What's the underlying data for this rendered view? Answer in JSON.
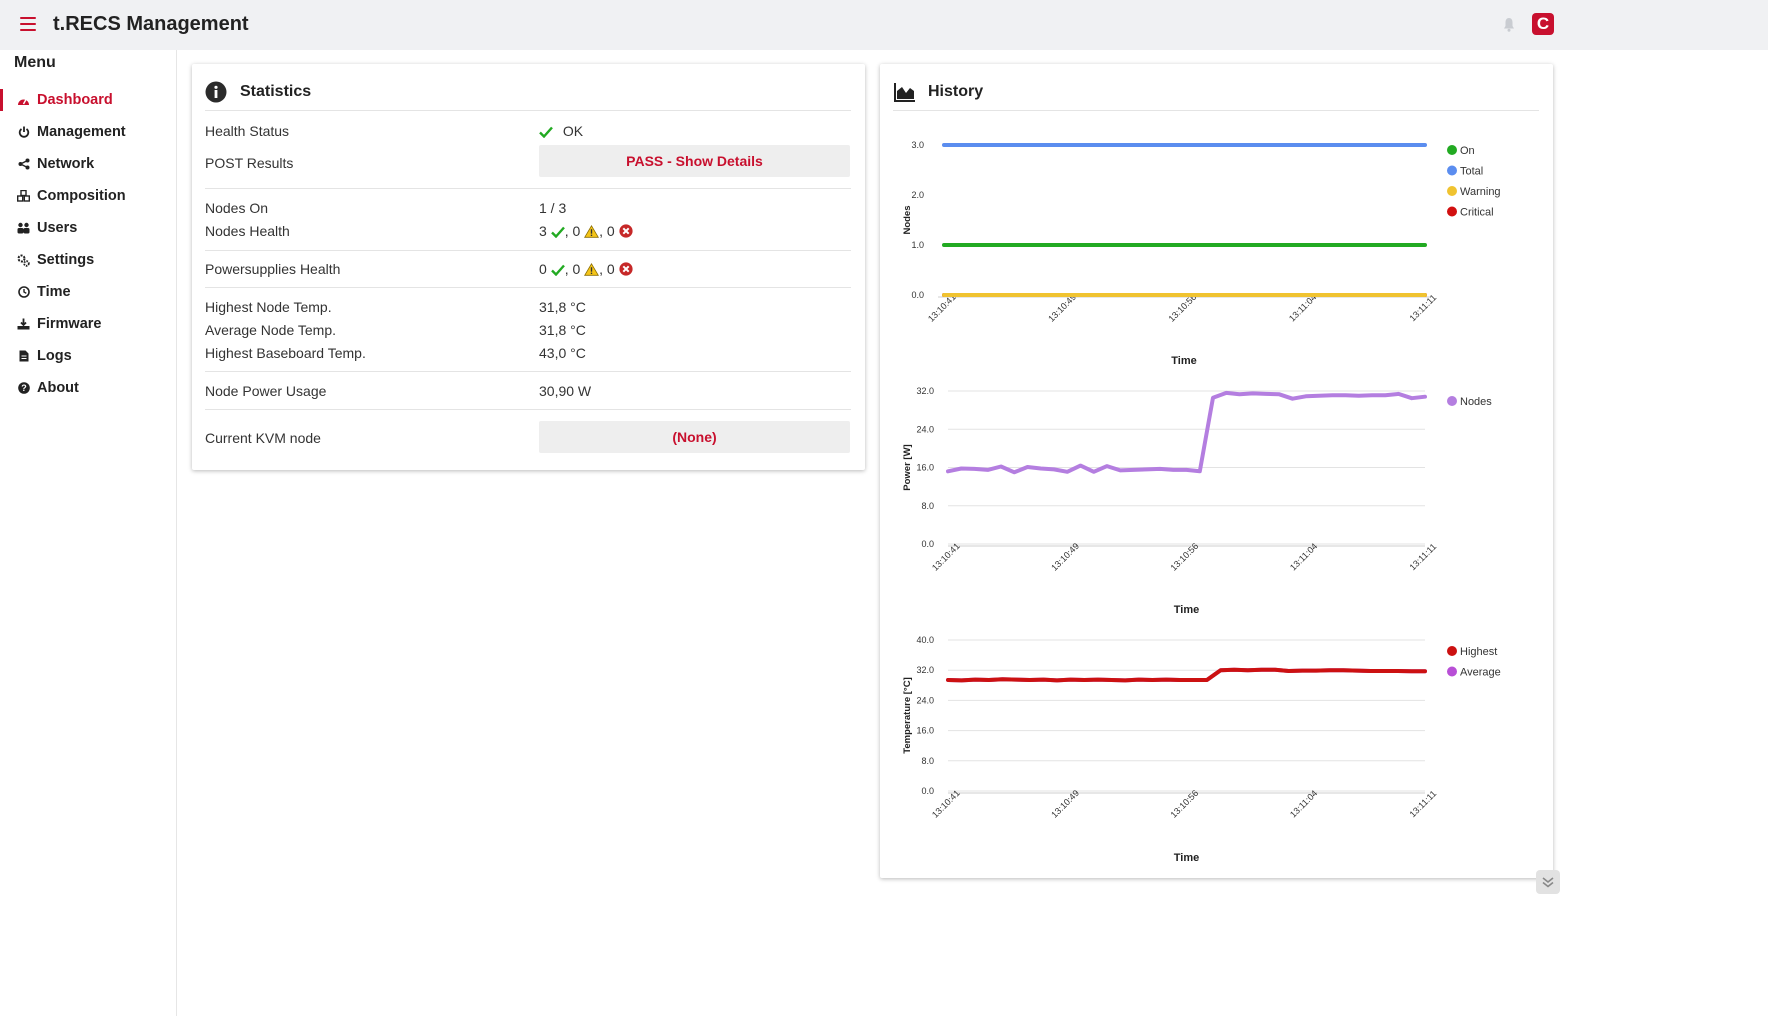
{
  "header": {
    "title": "t.RECS Management",
    "logo_letter": "C",
    "brand_color": "#c8102e"
  },
  "sidebar": {
    "title": "Menu",
    "items": [
      {
        "label": "Dashboard",
        "icon": "dashboard-gauge-icon",
        "active": true
      },
      {
        "label": "Management",
        "icon": "power-icon"
      },
      {
        "label": "Network",
        "icon": "share-icon"
      },
      {
        "label": "Composition",
        "icon": "cubes-icon"
      },
      {
        "label": "Users",
        "icon": "users-icon"
      },
      {
        "label": "Settings",
        "icon": "cogs-icon"
      },
      {
        "label": "Time",
        "icon": "clock-icon"
      },
      {
        "label": "Firmware",
        "icon": "download-tray-icon"
      },
      {
        "label": "Logs",
        "icon": "file-icon"
      },
      {
        "label": "About",
        "icon": "question-circle-icon"
      }
    ]
  },
  "statistics": {
    "title": "Statistics",
    "health_status": {
      "label": "Health Status",
      "value": "OK"
    },
    "post_results": {
      "label": "POST Results",
      "button": "PASS - Show Details"
    },
    "nodes_on": {
      "label": "Nodes On",
      "value": "1 / 3"
    },
    "nodes_health": {
      "label": "Nodes Health",
      "ok": "3",
      "warning": ", 0",
      "critical": ", 0"
    },
    "psu_health": {
      "label": "Powersupplies Health",
      "ok": "0",
      "warning": ", 0",
      "critical": ", 0"
    },
    "highest_node_temp": {
      "label": "Highest Node Temp.",
      "value": "31,8 °C"
    },
    "average_node_temp": {
      "label": "Average Node Temp.",
      "value": "31,8 °C"
    },
    "highest_baseboard_temp": {
      "label": "Highest Baseboard Temp.",
      "value": "43,0 °C"
    },
    "node_power": {
      "label": "Node Power Usage",
      "value": "30,90 W"
    },
    "kvm": {
      "label": "Current KVM node",
      "button": "(None)"
    }
  },
  "history": {
    "title": "History"
  },
  "chart_data": [
    {
      "type": "line",
      "ylabel": "Nodes",
      "xlabel": "Time",
      "x_ticks": [
        "13:10:41",
        "13:10:49",
        "13:10:56",
        "13:11:04",
        "13:11:11"
      ],
      "y_ticks": [
        "0.0",
        "1.0",
        "2.0",
        "3.0"
      ],
      "ylim": [
        0,
        3
      ],
      "grid": false,
      "legend": "right",
      "series": [
        {
          "name": "On",
          "color": "#22aa22",
          "values": [
            1,
            1
          ]
        },
        {
          "name": "Total",
          "color": "#5b8def",
          "values": [
            3,
            3
          ]
        },
        {
          "name": "Warning",
          "color": "#f0c330",
          "values": [
            0,
            0
          ]
        },
        {
          "name": "Critical",
          "color": "#d21010",
          "values": [
            0,
            0
          ]
        }
      ]
    },
    {
      "type": "line",
      "ylabel": "Power [W]",
      "xlabel": "Time",
      "x_ticks": [
        "13:10:41",
        "13:10:49",
        "13:10:56",
        "13:11:04",
        "13:11:11"
      ],
      "y_ticks": [
        "0.0",
        "8.0",
        "16.0",
        "24.0",
        "32.0"
      ],
      "ylim": [
        0,
        32
      ],
      "grid": true,
      "legend": "right",
      "series": [
        {
          "name": "Nodes",
          "color": "#b47ee0",
          "values": [
            15.2,
            15.8,
            15.7,
            15.5,
            16.2,
            15.0,
            16.1,
            15.8,
            15.6,
            15.1,
            16.4,
            15.1,
            16.3,
            15.4,
            15.5,
            15.6,
            15.7,
            15.5,
            15.5,
            15.2,
            30.6,
            31.6,
            31.3,
            31.5,
            31.4,
            31.3,
            30.4,
            30.9,
            31.0,
            31.1,
            31.1,
            31.0,
            31.1,
            31.1,
            31.4,
            30.5,
            30.8
          ]
        }
      ]
    },
    {
      "type": "line",
      "ylabel": "Temperature [°C]",
      "xlabel": "Time",
      "x_ticks": [
        "13:10:41",
        "13:10:49",
        "13:10:56",
        "13:11:04",
        "13:11:11"
      ],
      "y_ticks": [
        "0.0",
        "8.0",
        "16.0",
        "24.0",
        "32.0",
        "40.0"
      ],
      "ylim": [
        0,
        40
      ],
      "grid": true,
      "legend": "right",
      "series": [
        {
          "name": "Highest",
          "color": "#cc1111",
          "values": [
            29.4,
            29.3,
            29.5,
            29.4,
            29.6,
            29.5,
            29.4,
            29.5,
            29.3,
            29.5,
            29.4,
            29.5,
            29.4,
            29.3,
            29.5,
            29.4,
            29.5,
            29.4,
            29.4,
            29.4,
            32.0,
            32.1,
            32.0,
            32.1,
            32.1,
            31.8,
            31.9,
            31.9,
            32.0,
            32.0,
            31.9,
            31.8,
            31.8,
            31.8,
            31.7,
            31.7
          ]
        },
        {
          "name": "Average",
          "color": "#b84fd6",
          "values": [
            29.4,
            29.3,
            29.5,
            29.4,
            29.6,
            29.5,
            29.4,
            29.5,
            29.3,
            29.5,
            29.4,
            29.5,
            29.4,
            29.3,
            29.5,
            29.4,
            29.5,
            29.4,
            29.4,
            29.4,
            32.0,
            32.1,
            32.0,
            32.1,
            32.1,
            31.8,
            31.9,
            31.9,
            32.0,
            32.0,
            31.9,
            31.8,
            31.8,
            31.8,
            31.7,
            31.7
          ]
        }
      ]
    }
  ]
}
